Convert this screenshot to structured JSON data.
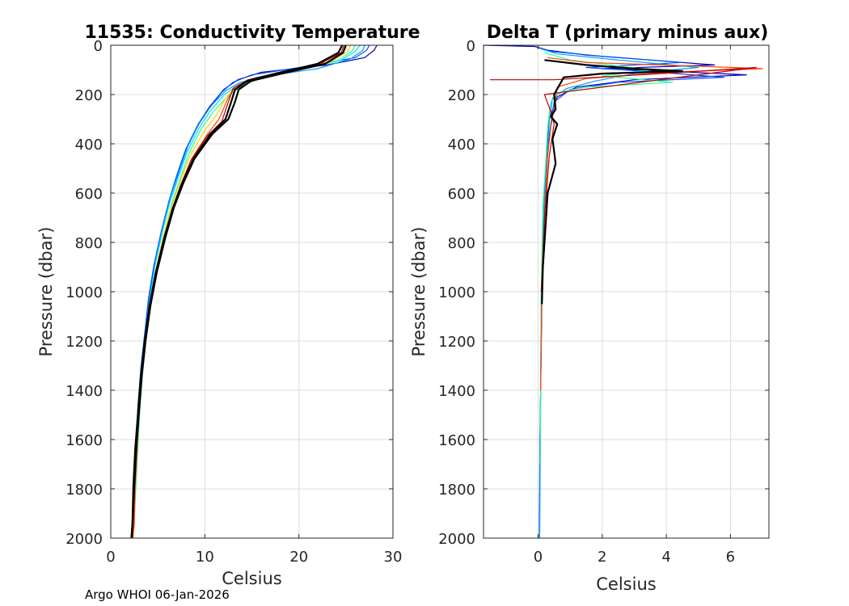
{
  "footer": "Argo WHOI 06-Jan-2026",
  "chart_data": [
    {
      "type": "line",
      "title": "11535: Conductivity Temperature",
      "xlabel": "Celsius",
      "ylabel": "Pressure (dbar)",
      "xlim": [
        0,
        30
      ],
      "ylim": [
        0,
        2000
      ],
      "y_reversed": true,
      "grid": true,
      "xticks": [
        0,
        10,
        20,
        30
      ],
      "yticks": [
        0,
        200,
        400,
        600,
        800,
        1000,
        1200,
        1400,
        1600,
        1800,
        2000
      ],
      "series": [
        {
          "color": "#0000b4",
          "x": [
            28.3,
            28.0,
            27.0,
            23.0,
            16.0,
            13.5,
            12.0,
            10.5,
            9.3,
            8.0,
            7.1,
            6.3,
            5.5,
            4.7,
            4.1,
            3.7,
            3.3,
            3.0,
            2.8,
            2.6,
            2.5,
            2.4
          ],
          "y": [
            0,
            20,
            50,
            80,
            110,
            140,
            180,
            250,
            320,
            420,
            520,
            620,
            740,
            880,
            1020,
            1160,
            1300,
            1450,
            1600,
            1750,
            1900,
            2000
          ]
        },
        {
          "color": "#0050ff",
          "x": [
            27.5,
            27.2,
            26.0,
            21.0,
            15.0,
            13.0,
            11.8,
            10.4,
            9.2,
            7.9,
            7.0,
            6.2,
            5.4,
            4.6,
            4.0,
            3.6,
            3.2,
            2.9,
            2.7,
            2.5,
            2.4,
            2.3
          ],
          "y": [
            0,
            20,
            50,
            85,
            120,
            150,
            190,
            260,
            330,
            430,
            530,
            630,
            750,
            890,
            1030,
            1170,
            1310,
            1460,
            1610,
            1760,
            1910,
            2000
          ]
        },
        {
          "color": "#00a0ff",
          "x": [
            27.0,
            26.8,
            25.5,
            22.0,
            16.5,
            13.8,
            12.2,
            10.7,
            9.5,
            8.2,
            7.3,
            6.4,
            5.6,
            4.8,
            4.2,
            3.7,
            3.3,
            3.0,
            2.8,
            2.6,
            2.5,
            2.4
          ],
          "y": [
            0,
            20,
            55,
            95,
            125,
            150,
            185,
            245,
            310,
            410,
            510,
            610,
            730,
            870,
            1010,
            1150,
            1290,
            1440,
            1590,
            1740,
            1890,
            2000
          ]
        },
        {
          "color": "#00e0ff",
          "x": [
            26.5,
            26.0,
            24.5,
            20.0,
            15.5,
            13.6,
            12.1,
            10.6,
            9.4,
            8.1,
            7.2,
            6.3,
            5.5,
            4.7,
            4.1,
            3.7,
            3.3,
            3.0,
            2.8,
            2.6,
            2.5,
            2.4
          ],
          "y": [
            0,
            25,
            60,
            100,
            130,
            160,
            200,
            265,
            335,
            435,
            535,
            635,
            755,
            895,
            1035,
            1175,
            1315,
            1465,
            1615,
            1765,
            1915,
            2000
          ]
        },
        {
          "color": "#30ff90",
          "x": [
            26.0,
            25.6,
            24.0,
            19.5,
            15.8,
            14.0,
            12.5,
            10.9,
            9.6,
            8.3,
            7.4,
            6.5,
            5.7,
            4.9,
            4.2,
            3.8,
            3.4,
            3.1,
            2.9,
            2.7,
            2.5,
            2.4
          ],
          "y": [
            0,
            25,
            65,
            105,
            135,
            165,
            205,
            270,
            340,
            440,
            540,
            640,
            760,
            900,
            1040,
            1180,
            1320,
            1470,
            1620,
            1770,
            1920,
            2000
          ]
        },
        {
          "color": "#ffd000",
          "x": [
            25.5,
            25.2,
            23.5,
            19.0,
            15.2,
            13.4,
            12.3,
            11.2,
            9.9,
            8.4,
            7.4,
            6.5,
            5.6,
            4.8,
            4.2,
            3.7,
            3.3,
            3.0,
            2.8,
            2.6,
            2.5,
            2.4
          ],
          "y": [
            0,
            25,
            65,
            105,
            135,
            165,
            210,
            285,
            350,
            450,
            550,
            650,
            770,
            910,
            1050,
            1190,
            1330,
            1480,
            1630,
            1780,
            1930,
            2000
          ]
        },
        {
          "color": "#ff4000",
          "x": [
            25.0,
            24.8,
            23.0,
            18.5,
            15.0,
            13.2,
            12.4,
            11.5,
            10.3,
            8.6,
            7.5,
            6.6,
            5.7,
            4.9,
            4.2,
            3.7,
            3.3,
            3.0,
            2.8,
            2.6,
            2.5,
            2.3
          ],
          "y": [
            0,
            25,
            70,
            110,
            140,
            170,
            220,
            300,
            360,
            460,
            560,
            660,
            780,
            920,
            1060,
            1200,
            1340,
            1490,
            1640,
            1790,
            1940,
            2000
          ]
        },
        {
          "color": "#c00000",
          "x": [
            24.8,
            24.5,
            22.5,
            18.0,
            14.6,
            13.0,
            12.5,
            11.8,
            10.2,
            8.5,
            7.4,
            6.5,
            5.6,
            4.8,
            4.1,
            3.6,
            3.2,
            2.9,
            2.7,
            2.5,
            2.4,
            2.3
          ],
          "y": [
            0,
            30,
            70,
            110,
            140,
            175,
            230,
            310,
            370,
            470,
            570,
            670,
            790,
            930,
            1070,
            1210,
            1350,
            1500,
            1650,
            1800,
            1950,
            2000
          ]
        },
        {
          "color": "#000000",
          "x": [
            24.6,
            24.2,
            22.0,
            17.5,
            14.5,
            13.2,
            12.8,
            12.2,
            10.6,
            8.8,
            7.6,
            6.6,
            5.7,
            4.8,
            4.1,
            3.6,
            3.2,
            2.9,
            2.6,
            2.4,
            2.3,
            2.2
          ],
          "y": [
            0,
            30,
            75,
            115,
            145,
            180,
            230,
            300,
            360,
            460,
            560,
            660,
            780,
            920,
            1060,
            1200,
            1340,
            1490,
            1640,
            1790,
            1940,
            2000
          ]
        },
        {
          "color": "#000000",
          "x": [
            25.0,
            24.7,
            22.8,
            18.2,
            14.9,
            13.6,
            13.2,
            12.5,
            10.8,
            8.9,
            7.7,
            6.7,
            5.8,
            4.9,
            4.2,
            3.7,
            3.3,
            3.0,
            2.7,
            2.5,
            2.3,
            2.2
          ],
          "y": [
            0,
            30,
            75,
            115,
            145,
            180,
            230,
            300,
            360,
            460,
            560,
            660,
            780,
            920,
            1060,
            1200,
            1340,
            1490,
            1640,
            1790,
            1940,
            2000
          ]
        }
      ]
    },
    {
      "type": "line",
      "title": "Delta T (primary minus aux)",
      "xlabel": "Celsius",
      "ylabel": "Pressure (dbar)",
      "xlim": [
        -1.7,
        7.2
      ],
      "ylim": [
        0,
        2000
      ],
      "y_reversed": true,
      "grid": true,
      "xticks": [
        0,
        2,
        4,
        6
      ],
      "yticks": [
        0,
        200,
        400,
        600,
        800,
        1000,
        1200,
        1400,
        1600,
        1800,
        2000
      ],
      "series": [
        {
          "color": "#0000b4",
          "x": [
            -1.7,
            -0.1,
            0.3,
            1.5,
            3.5,
            5.5,
            2.0,
            4.0,
            6.5,
            3.0,
            1.2,
            0.6,
            0.35,
            0.3,
            0.25,
            0.2,
            0.15,
            0.12,
            0.1,
            0.08,
            0.06,
            0.05,
            0.04
          ],
          "y": [
            0,
            5,
            20,
            40,
            60,
            80,
            95,
            105,
            120,
            140,
            170,
            210,
            300,
            400,
            500,
            600,
            800,
            1000,
            1200,
            1400,
            1600,
            1800,
            2000
          ]
        },
        {
          "color": "#0050ff",
          "x": [
            0.0,
            0.4,
            2.0,
            4.5,
            1.5,
            3.8,
            5.8,
            2.5,
            1.0,
            0.5,
            0.4,
            0.3,
            0.25,
            0.2,
            0.15,
            0.12,
            0.1,
            0.08,
            0.06,
            0.05
          ],
          "y": [
            10,
            25,
            45,
            70,
            90,
            110,
            130,
            150,
            180,
            230,
            320,
            420,
            520,
            620,
            820,
            1020,
            1220,
            1420,
            1620,
            2000
          ]
        },
        {
          "color": "#00a0ff",
          "x": [
            0.1,
            0.6,
            2.5,
            5.0,
            3.0,
            1.8,
            0.9,
            0.45,
            0.35,
            0.3,
            0.2,
            0.15,
            0.1,
            0.08,
            0.05
          ],
          "y": [
            15,
            35,
            60,
            90,
            115,
            145,
            175,
            215,
            310,
            430,
            600,
            800,
            1000,
            1400,
            2000
          ]
        },
        {
          "color": "#30ff90",
          "x": [
            0.2,
            1.0,
            3.5,
            2.0,
            4.2,
            1.5,
            0.7,
            0.4,
            0.3,
            0.25,
            0.15,
            0.1,
            0.07
          ],
          "y": [
            30,
            60,
            100,
            125,
            150,
            170,
            190,
            230,
            330,
            460,
            650,
            1000,
            1700
          ]
        },
        {
          "color": "#ff4000",
          "x": [
            0.3,
            1.5,
            5.0,
            7.0,
            4.0,
            1.5,
            0.6,
            0.5,
            0.4,
            0.3,
            0.2,
            0.12,
            0.08
          ],
          "y": [
            50,
            70,
            85,
            95,
            110,
            135,
            170,
            260,
            330,
            450,
            700,
            950,
            1400
          ]
        },
        {
          "color": "#c00000",
          "x": [
            -1.5,
            0.5,
            4.5,
            6.8,
            0.2,
            0.4,
            0.5,
            0.35,
            0.2,
            0.1
          ],
          "y": [
            140,
            140,
            110,
            90,
            200,
            270,
            320,
            450,
            700,
            1000
          ]
        },
        {
          "color": "#000000",
          "x": [
            0.2,
            1.5,
            3.0,
            4.5,
            2.0,
            0.8,
            0.5,
            0.55,
            0.4,
            0.6,
            0.45,
            0.55,
            0.3,
            0.2,
            0.15,
            0.12
          ],
          "y": [
            60,
            80,
            95,
            105,
            115,
            130,
            200,
            260,
            290,
            320,
            380,
            480,
            600,
            800,
            900,
            1050
          ]
        }
      ]
    }
  ]
}
